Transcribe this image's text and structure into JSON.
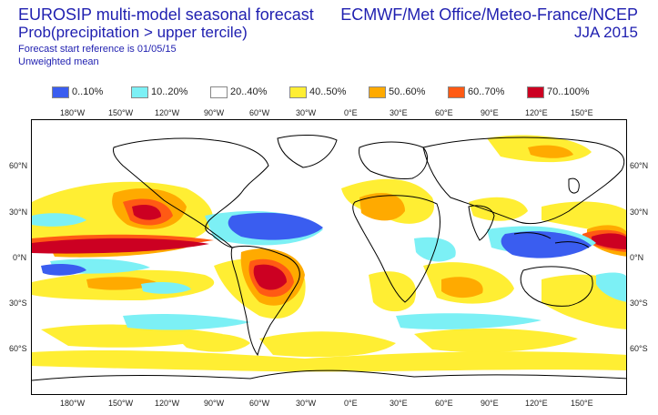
{
  "header": {
    "title": "EUROSIP multi-model seasonal forecast",
    "subtitle": "Prob(precipitation > upper tercile)",
    "forecast_ref": "Forecast start reference is 01/05/15",
    "mean_type": "Unweighted mean",
    "org": "ECMWF/Met Office/Meteo-France/NCEP",
    "season": "JJA 2015"
  },
  "legend": [
    {
      "label": "0..10%",
      "color": "#3a5df0"
    },
    {
      "label": "10..20%",
      "color": "#7cf0f5"
    },
    {
      "label": "20..40%",
      "color": "#ffffff"
    },
    {
      "label": "40..50%",
      "color": "#ffee33"
    },
    {
      "label": "50..60%",
      "color": "#ffaa00"
    },
    {
      "label": "60..70%",
      "color": "#ff5a14"
    },
    {
      "label": "70..100%",
      "color": "#cc0022"
    }
  ],
  "axes": {
    "lon_labels": [
      "180°W",
      "150°W",
      "120°W",
      "90°W",
      "60°W",
      "30°W",
      "0°E",
      "30°E",
      "60°E",
      "90°E",
      "120°E",
      "150°E"
    ],
    "lat_labels": [
      "60°N",
      "30°N",
      "0°N",
      "30°S",
      "60°S"
    ]
  }
}
